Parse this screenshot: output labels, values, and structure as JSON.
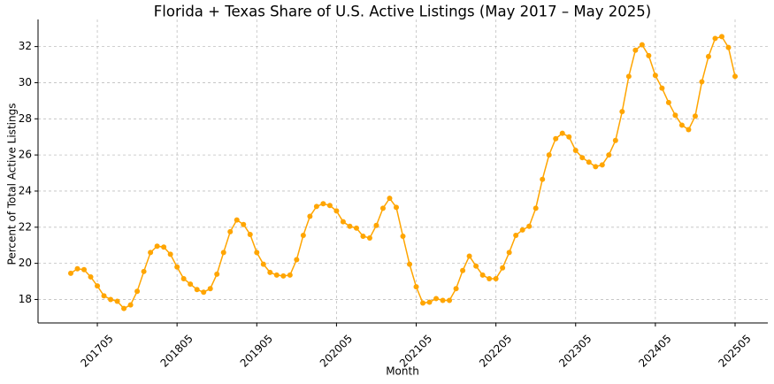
{
  "chart_data": {
    "type": "line",
    "title": "Florida + Texas Share of U.S. Active Listings (May 2017 – May 2025)",
    "x_label": "Month",
    "y_label": "Percent of Total Active Listings",
    "categories": [
      null,
      null,
      null,
      null,
      "201705",
      null,
      null,
      null,
      null,
      null,
      null,
      null,
      null,
      null,
      null,
      null,
      "201805",
      null,
      null,
      null,
      null,
      null,
      null,
      null,
      null,
      null,
      null,
      null,
      "201905",
      null,
      null,
      null,
      null,
      null,
      null,
      null,
      null,
      null,
      null,
      null,
      "202005",
      null,
      null,
      null,
      null,
      null,
      null,
      null,
      null,
      null,
      null,
      null,
      "202105",
      null,
      null,
      null,
      null,
      null,
      null,
      null,
      null,
      null,
      null,
      null,
      "202205",
      null,
      null,
      null,
      null,
      null,
      null,
      null,
      null,
      null,
      null,
      null,
      "202305",
      null,
      null,
      null,
      null,
      null,
      null,
      null,
      null,
      null,
      null,
      null,
      "202405",
      null,
      null,
      null,
      null,
      null,
      null,
      null,
      null,
      null,
      null,
      null,
      "202505"
    ],
    "series": [
      {
        "name": "Florida + Texas share",
        "color": "#ffa500",
        "values": [
          19.45,
          19.7,
          19.65,
          19.25,
          18.75,
          18.2,
          18.0,
          17.9,
          17.5,
          17.7,
          18.45,
          19.55,
          20.6,
          20.95,
          20.9,
          20.5,
          19.8,
          19.15,
          18.85,
          18.55,
          18.4,
          18.6,
          19.4,
          20.6,
          21.75,
          22.4,
          22.15,
          21.6,
          20.6,
          19.95,
          19.5,
          19.35,
          19.3,
          19.35,
          20.2,
          21.55,
          22.6,
          23.15,
          23.3,
          23.2,
          22.9,
          22.3,
          22.05,
          21.95,
          21.5,
          21.4,
          22.1,
          23.05,
          23.6,
          23.1,
          21.5,
          19.95,
          18.7,
          17.8,
          17.85,
          18.05,
          17.95,
          17.95,
          18.6,
          19.6,
          20.4,
          19.85,
          19.35,
          19.15,
          19.15,
          19.75,
          20.6,
          21.55,
          21.85,
          22.05,
          23.05,
          24.65,
          26.0,
          26.9,
          27.2,
          27.0,
          26.25,
          25.85,
          25.6,
          25.35,
          25.45,
          26.0,
          26.8,
          28.4,
          30.35,
          31.8,
          32.1,
          31.5,
          30.4,
          29.7,
          28.9,
          28.2,
          27.65,
          27.4,
          28.15,
          30.05,
          31.45,
          32.45,
          32.55,
          31.95,
          30.35
        ]
      }
    ],
    "ylim": [
      16.7,
      33.5
    ],
    "yticks": [
      18,
      20,
      22,
      24,
      26,
      28,
      30,
      32
    ],
    "grid": true
  }
}
